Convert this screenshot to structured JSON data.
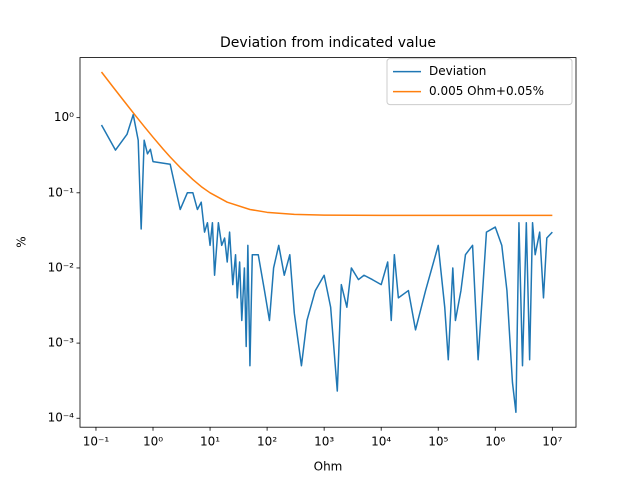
{
  "chart_data": {
    "type": "line",
    "title": "Deviation from indicated value",
    "x_label": "Ohm",
    "y_label": "%",
    "xscale": "log",
    "yscale": "log",
    "legend": "upper right",
    "xlim": [
      0.0525,
      26000000
    ],
    "ylim": [
      7.6e-05,
      6.3
    ],
    "xticks": [
      {
        "value": 0.1,
        "label": "10⁻¹"
      },
      {
        "value": 1,
        "label": "10⁰"
      },
      {
        "value": 10,
        "label": "10¹"
      },
      {
        "value": 100,
        "label": "10²"
      },
      {
        "value": 1000,
        "label": "10³"
      },
      {
        "value": 10000,
        "label": "10⁴"
      },
      {
        "value": 100000,
        "label": "10⁵"
      },
      {
        "value": 1000000,
        "label": "10⁶"
      },
      {
        "value": 10000000,
        "label": "10⁷"
      }
    ],
    "yticks": [
      {
        "value": 0.0001,
        "label": "10⁻⁴"
      },
      {
        "value": 0.001,
        "label": "10⁻³"
      },
      {
        "value": 0.01,
        "label": "10⁻²"
      },
      {
        "value": 0.1,
        "label": "10⁻¹"
      },
      {
        "value": 1,
        "label": "10⁰"
      }
    ],
    "series": [
      {
        "name": "Deviation",
        "color": "#1f77b4",
        "x": [
          0.125,
          0.22,
          0.35,
          0.45,
          0.55,
          0.62,
          0.7,
          0.8,
          0.9,
          1.0,
          2,
          3,
          4,
          5,
          6,
          7,
          8,
          9,
          10,
          11,
          12,
          14,
          16,
          18,
          20,
          22,
          25,
          28,
          30,
          33,
          36,
          40,
          43,
          46,
          50,
          55,
          70,
          90,
          110,
          130,
          160,
          200,
          250,
          300,
          400,
          500,
          700,
          1000,
          1300,
          1700,
          2000,
          2500,
          3000,
          4000,
          5000,
          7000,
          10000,
          13000,
          15000,
          17000,
          20000,
          30000,
          40000,
          60000,
          100000,
          130000,
          150000,
          180000,
          200000,
          250000,
          300000,
          400000,
          500000,
          700000,
          1000000,
          1300000,
          1600000,
          2000000,
          2300000,
          2600000,
          3000000,
          3500000,
          4000000,
          4500000,
          5000000,
          6000000,
          7000000,
          8000000,
          10000000
        ],
        "values": [
          0.8,
          0.37,
          0.6,
          1.1,
          0.5,
          0.033,
          0.5,
          0.33,
          0.38,
          0.26,
          0.24,
          0.06,
          0.1,
          0.1,
          0.06,
          0.075,
          0.03,
          0.04,
          0.02,
          0.04,
          0.008,
          0.04,
          0.02,
          0.025,
          0.012,
          0.03,
          0.006,
          0.015,
          0.004,
          0.012,
          0.002,
          0.01,
          0.0009,
          0.02,
          0.0005,
          0.015,
          0.015,
          0.005,
          0.002,
          0.01,
          0.02,
          0.008,
          0.015,
          0.0025,
          0.0005,
          0.002,
          0.005,
          0.008,
          0.003,
          0.00023,
          0.006,
          0.003,
          0.01,
          0.007,
          0.008,
          0.007,
          0.006,
          0.012,
          0.002,
          0.015,
          0.004,
          0.005,
          0.0015,
          0.005,
          0.02,
          0.003,
          0.0006,
          0.01,
          0.002,
          0.005,
          0.015,
          0.02,
          0.0006,
          0.03,
          0.035,
          0.02,
          0.005,
          0.0003,
          0.00012,
          0.04,
          0.0005,
          0.04,
          0.0006,
          0.04,
          0.015,
          0.03,
          0.004,
          0.025,
          0.03
        ]
      },
      {
        "name": "0.005 Ohm+0.05%",
        "color": "#ff7f0e",
        "x": [
          0.125,
          0.2,
          0.3,
          0.5,
          0.7,
          1,
          1.5,
          2,
          3,
          5,
          7,
          10,
          20,
          50,
          100,
          300,
          1000,
          10000,
          100000,
          1000000,
          10000000
        ],
        "values": [
          4.05,
          2.55,
          1.717,
          1.05,
          0.764,
          0.55,
          0.383,
          0.3,
          0.217,
          0.15,
          0.121,
          0.1,
          0.075,
          0.06,
          0.055,
          0.0517,
          0.0505,
          0.05005,
          0.05,
          0.05,
          0.05
        ]
      }
    ]
  }
}
